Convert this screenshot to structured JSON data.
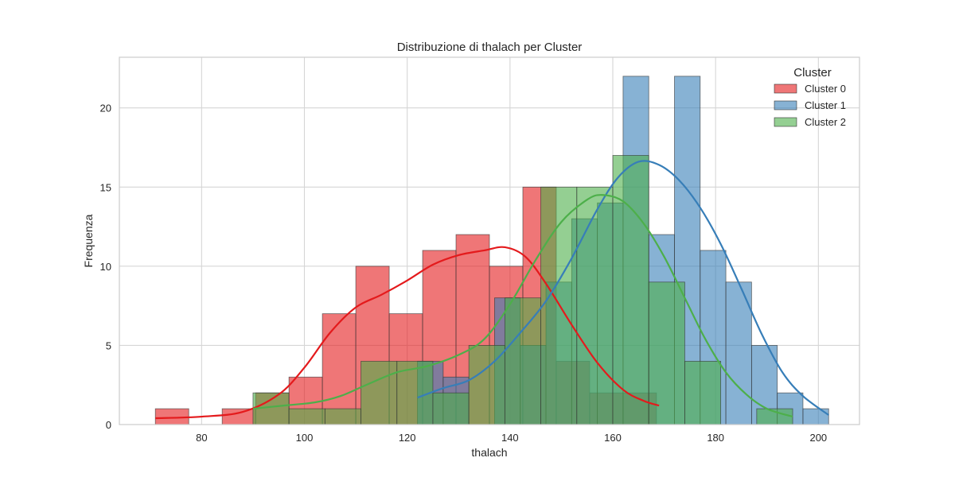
{
  "chart_data": {
    "type": "histogram",
    "title": "Distribuzione di thalach per Cluster",
    "xlabel": "thalach",
    "ylabel": "Frequenza",
    "xlim": [
      64,
      208
    ],
    "ylim": [
      0,
      23.2
    ],
    "xticks": [
      80,
      100,
      120,
      140,
      160,
      180,
      200
    ],
    "yticks": [
      0,
      5,
      10,
      15,
      20
    ],
    "grid": true,
    "legend": {
      "title": "Cluster",
      "placement": "top-right"
    },
    "series": [
      {
        "name": "Cluster 0",
        "color": "#e41a1c",
        "bins": [
          {
            "x0": 71.0,
            "x1": 77.5,
            "count": 1
          },
          {
            "x0": 77.5,
            "x1": 84.0,
            "count": 0
          },
          {
            "x0": 84.0,
            "x1": 90.5,
            "count": 1
          },
          {
            "x0": 90.5,
            "x1": 97.0,
            "count": 2
          },
          {
            "x0": 97.0,
            "x1": 103.5,
            "count": 3
          },
          {
            "x0": 103.5,
            "x1": 110.0,
            "count": 7
          },
          {
            "x0": 110.0,
            "x1": 116.5,
            "count": 10
          },
          {
            "x0": 116.5,
            "x1": 123.0,
            "count": 7
          },
          {
            "x0": 123.0,
            "x1": 129.5,
            "count": 11
          },
          {
            "x0": 129.5,
            "x1": 136.0,
            "count": 12
          },
          {
            "x0": 136.0,
            "x1": 142.5,
            "count": 10
          },
          {
            "x0": 142.5,
            "x1": 149.0,
            "count": 15
          },
          {
            "x0": 149.0,
            "x1": 155.5,
            "count": 4
          },
          {
            "x0": 155.5,
            "x1": 162.0,
            "count": 2
          },
          {
            "x0": 162.0,
            "x1": 168.5,
            "count": 2
          }
        ],
        "kde": [
          [
            71,
            0.4
          ],
          [
            80,
            0.5
          ],
          [
            88,
            0.8
          ],
          [
            95,
            1.9
          ],
          [
            100,
            3.6
          ],
          [
            105,
            5.8
          ],
          [
            110,
            7.4
          ],
          [
            115,
            8.2
          ],
          [
            120,
            9.1
          ],
          [
            125,
            10.1
          ],
          [
            130,
            10.7
          ],
          [
            135,
            11.0
          ],
          [
            139,
            11.2
          ],
          [
            143,
            10.6
          ],
          [
            147,
            8.9
          ],
          [
            152,
            6.3
          ],
          [
            157,
            3.9
          ],
          [
            162,
            2.2
          ],
          [
            166,
            1.5
          ],
          [
            169,
            1.2
          ]
        ]
      },
      {
        "name": "Cluster 1",
        "color": "#377eb8",
        "bins": [
          {
            "x0": 122.0,
            "x1": 127.0,
            "count": 4
          },
          {
            "x0": 127.0,
            "x1": 132.0,
            "count": 3
          },
          {
            "x0": 132.0,
            "x1": 137.0,
            "count": 0
          },
          {
            "x0": 137.0,
            "x1": 142.0,
            "count": 8
          },
          {
            "x0": 142.0,
            "x1": 147.0,
            "count": 5
          },
          {
            "x0": 147.0,
            "x1": 152.0,
            "count": 9
          },
          {
            "x0": 152.0,
            "x1": 157.0,
            "count": 13
          },
          {
            "x0": 157.0,
            "x1": 162.0,
            "count": 14
          },
          {
            "x0": 162.0,
            "x1": 167.0,
            "count": 22
          },
          {
            "x0": 167.0,
            "x1": 172.0,
            "count": 12
          },
          {
            "x0": 172.0,
            "x1": 177.0,
            "count": 22
          },
          {
            "x0": 177.0,
            "x1": 182.0,
            "count": 11
          },
          {
            "x0": 182.0,
            "x1": 187.0,
            "count": 9
          },
          {
            "x0": 187.0,
            "x1": 192.0,
            "count": 5
          },
          {
            "x0": 192.0,
            "x1": 197.0,
            "count": 2
          },
          {
            "x0": 197.0,
            "x1": 202.0,
            "count": 1
          }
        ],
        "kde": [
          [
            122,
            1.7
          ],
          [
            127,
            2.3
          ],
          [
            132,
            2.8
          ],
          [
            137,
            4.0
          ],
          [
            142,
            5.8
          ],
          [
            147,
            7.8
          ],
          [
            152,
            10.5
          ],
          [
            157,
            13.6
          ],
          [
            161,
            15.6
          ],
          [
            165,
            16.6
          ],
          [
            169,
            16.4
          ],
          [
            173,
            15.4
          ],
          [
            177,
            13.7
          ],
          [
            181,
            11.4
          ],
          [
            185,
            8.6
          ],
          [
            189,
            5.7
          ],
          [
            193,
            3.3
          ],
          [
            197,
            1.8
          ],
          [
            202,
            0.6
          ]
        ]
      },
      {
        "name": "Cluster 2",
        "color": "#4daf4a",
        "bins": [
          {
            "x0": 90.0,
            "x1": 97.0,
            "count": 2
          },
          {
            "x0": 97.0,
            "x1": 104.0,
            "count": 1
          },
          {
            "x0": 104.0,
            "x1": 111.0,
            "count": 1
          },
          {
            "x0": 111.0,
            "x1": 118.0,
            "count": 4
          },
          {
            "x0": 118.0,
            "x1": 125.0,
            "count": 4
          },
          {
            "x0": 125.0,
            "x1": 132.0,
            "count": 2
          },
          {
            "x0": 132.0,
            "x1": 139.0,
            "count": 5
          },
          {
            "x0": 139.0,
            "x1": 146.0,
            "count": 8
          },
          {
            "x0": 146.0,
            "x1": 153.0,
            "count": 15
          },
          {
            "x0": 153.0,
            "x1": 160.0,
            "count": 15
          },
          {
            "x0": 160.0,
            "x1": 167.0,
            "count": 17
          },
          {
            "x0": 167.0,
            "x1": 174.0,
            "count": 9
          },
          {
            "x0": 174.0,
            "x1": 181.0,
            "count": 4
          },
          {
            "x0": 181.0,
            "x1": 188.0,
            "count": 0
          },
          {
            "x0": 188.0,
            "x1": 195.0,
            "count": 1
          }
        ],
        "kde": [
          [
            90,
            1.0
          ],
          [
            96,
            1.2
          ],
          [
            102,
            1.4
          ],
          [
            107,
            1.8
          ],
          [
            112,
            2.5
          ],
          [
            118,
            3.3
          ],
          [
            124,
            3.7
          ],
          [
            130,
            4.4
          ],
          [
            135,
            5.4
          ],
          [
            140,
            7.6
          ],
          [
            145,
            10.4
          ],
          [
            150,
            12.8
          ],
          [
            155,
            14.2
          ],
          [
            158,
            14.5
          ],
          [
            162,
            14.1
          ],
          [
            166,
            12.7
          ],
          [
            170,
            10.6
          ],
          [
            174,
            8.0
          ],
          [
            178,
            5.4
          ],
          [
            182,
            3.3
          ],
          [
            186,
            1.9
          ],
          [
            190,
            1.0
          ],
          [
            195,
            0.5
          ]
        ]
      }
    ]
  }
}
